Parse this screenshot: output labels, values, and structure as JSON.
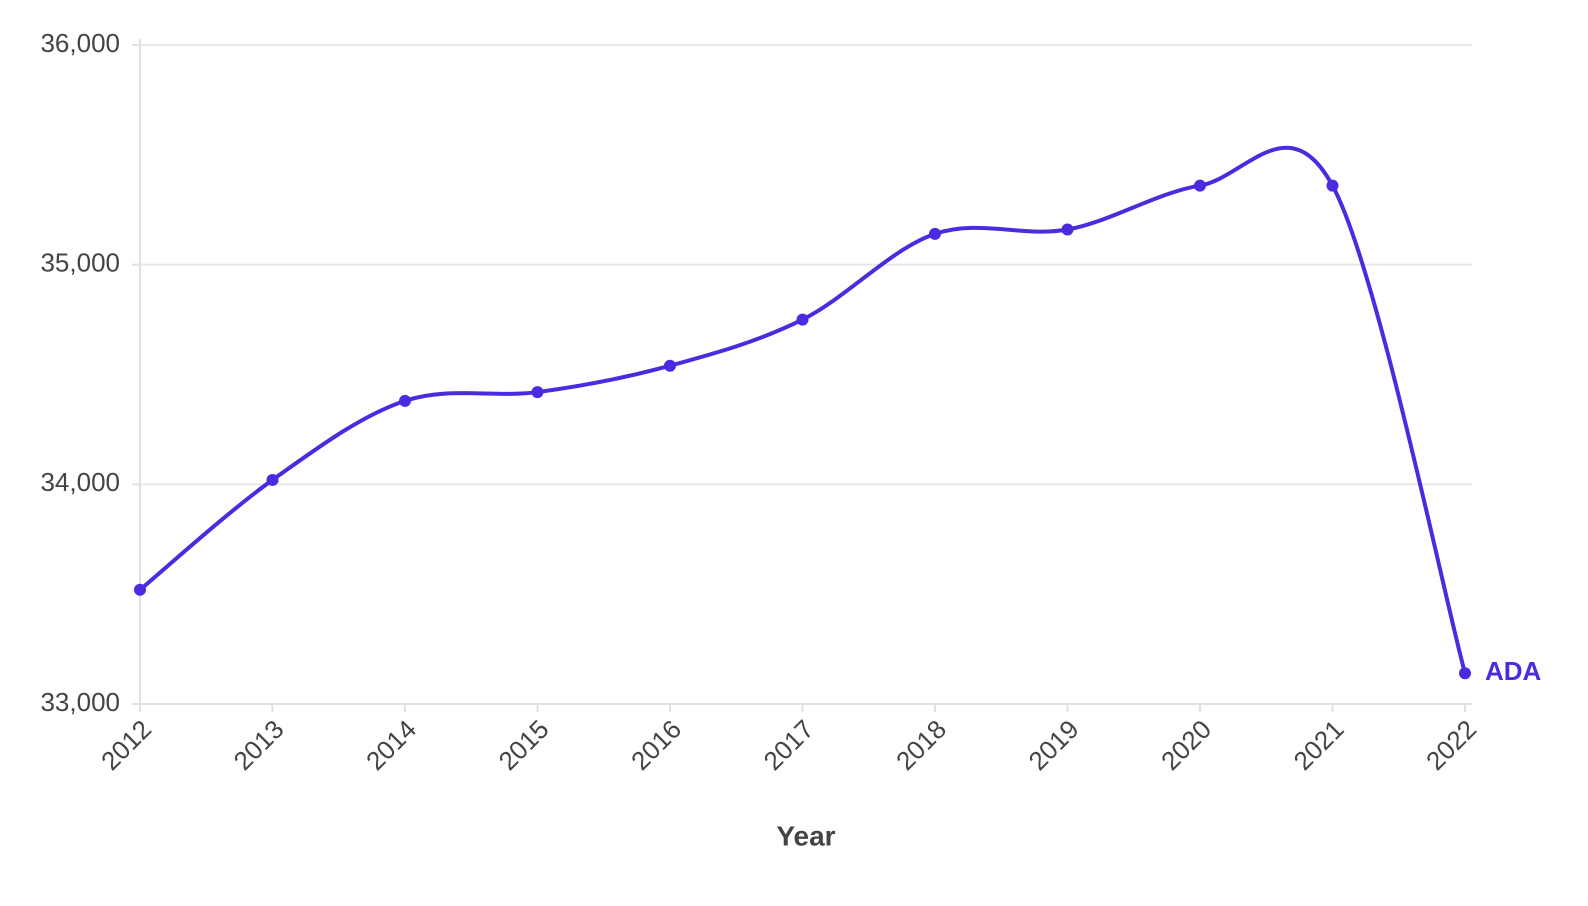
{
  "chart_data": {
    "type": "line",
    "x_label": "Year",
    "categories": [
      "2012",
      "2013",
      "2014",
      "2015",
      "2016",
      "2017",
      "2018",
      "2019",
      "2020",
      "2021",
      "2022"
    ],
    "series": [
      {
        "name": "ADA",
        "color": "#4b2ae0",
        "values": [
          33520,
          34020,
          34380,
          34420,
          34540,
          34750,
          35140,
          35160,
          35360,
          35360,
          33140
        ]
      }
    ],
    "ylim": [
      33000,
      36000
    ],
    "yticks": [
      {
        "value": 33000,
        "label": "33,000"
      },
      {
        "value": 34000,
        "label": "34,000"
      },
      {
        "value": 35000,
        "label": "35,000"
      },
      {
        "value": 36000,
        "label": "36,000"
      }
    ],
    "grid": true
  }
}
